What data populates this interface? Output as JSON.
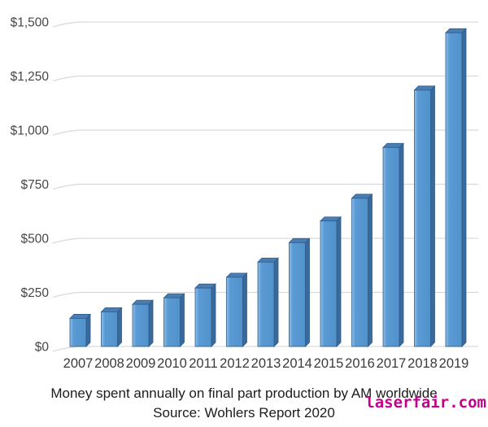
{
  "chart_data": {
    "type": "bar",
    "title": "Money spent annually on final part production by AM worldwide",
    "source": "Source: Wohlers Report 2020",
    "categories": [
      "2007",
      "2008",
      "2009",
      "2010",
      "2011",
      "2012",
      "2013",
      "2014",
      "2015",
      "2016",
      "2017",
      "2018",
      "2019"
    ],
    "values": [
      130,
      160,
      195,
      225,
      270,
      320,
      390,
      480,
      580,
      685,
      920,
      1185,
      1450
    ],
    "xlabel": "",
    "ylabel": "",
    "ylim": [
      0,
      1500
    ],
    "grid": true,
    "legend": "none",
    "bar_style": "3d-box",
    "yticks": [
      {
        "label": "$0",
        "value": 0
      },
      {
        "label": "$250",
        "value": 250
      },
      {
        "label": "$500",
        "value": 500
      },
      {
        "label": "$750",
        "value": 750
      },
      {
        "label": "$1,000",
        "value": 1000
      },
      {
        "label": "$1,250",
        "value": 1250
      },
      {
        "label": "$1,500",
        "value": 1500
      }
    ],
    "colors": {
      "bar_front": "#5b9bd5",
      "bar_highlight": "#8fc0ea",
      "bar_front_shade": "#5292cb",
      "bar_side": "#3a6a9b",
      "bar_top": "#4a7db2",
      "bar_outline": "#2e5c8a",
      "gridline": "#d9d9d9",
      "axis_text": "#474747",
      "caption_text": "#1c1c1c"
    }
  },
  "watermark": {
    "text": "laserfair.com",
    "color": "#c4008b"
  }
}
